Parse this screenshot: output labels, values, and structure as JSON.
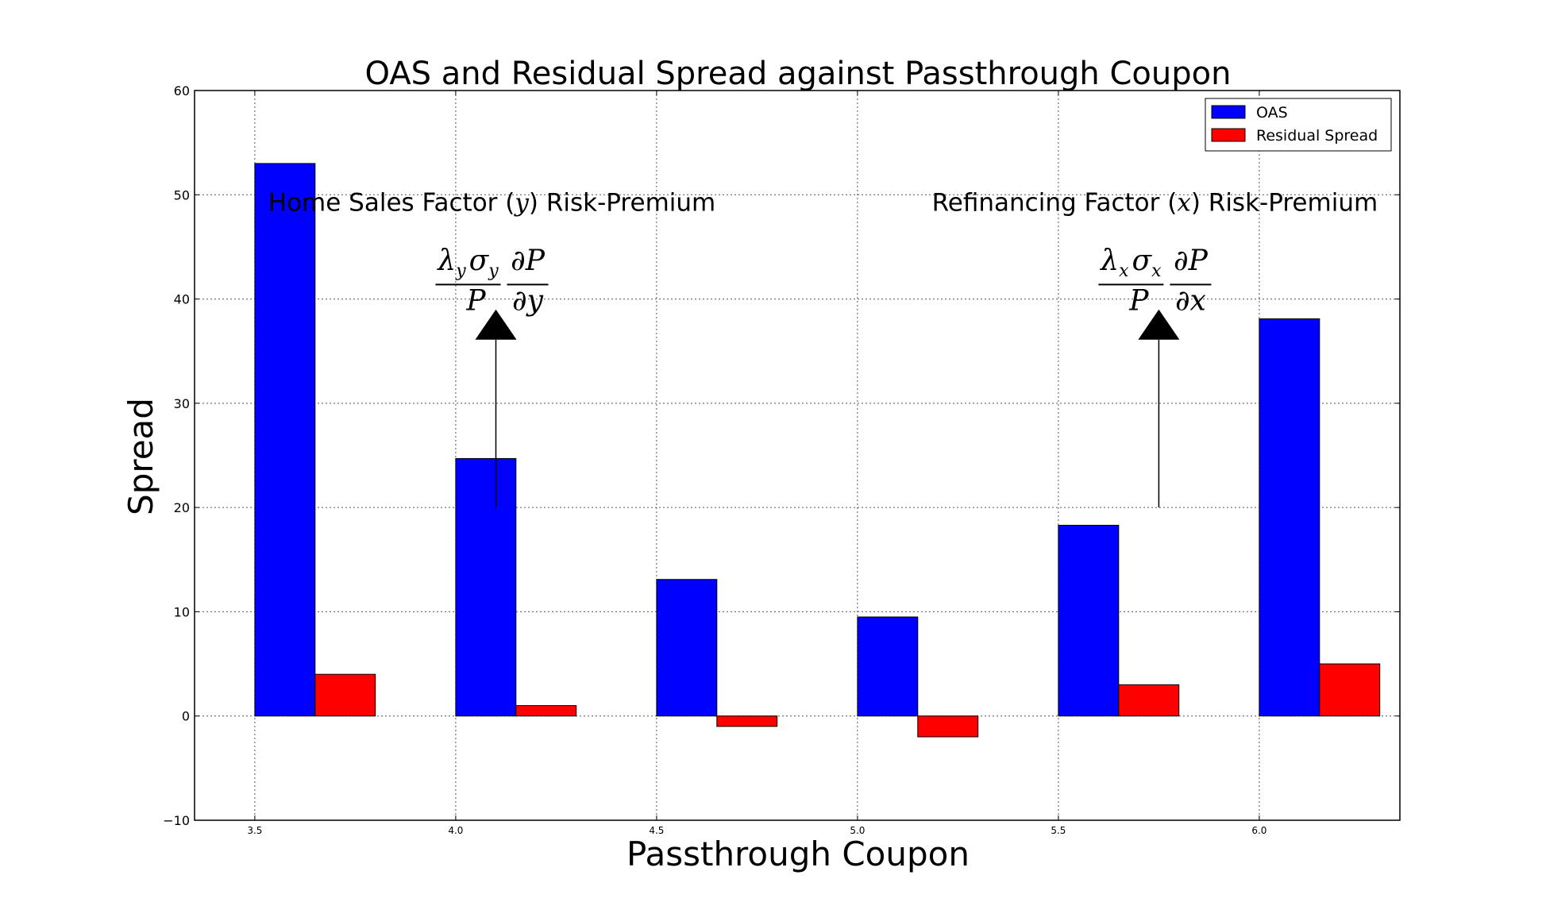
{
  "chart_data": {
    "type": "bar",
    "title": "OAS and Residual Spread against Passthrough Coupon",
    "xlabel": "Passthrough Coupon",
    "ylabel": "Spread",
    "categories": [
      "3.5",
      "4.0",
      "4.5",
      "5.0",
      "5.5",
      "6.0"
    ],
    "series": [
      {
        "name": "OAS",
        "color": "#0000ff",
        "values": [
          53,
          24.7,
          13.1,
          9.5,
          18.3,
          38.1
        ]
      },
      {
        "name": "Residual Spread",
        "color": "#ff0000",
        "values": [
          4,
          1,
          -1,
          -2,
          3,
          5
        ]
      }
    ],
    "ylim": [
      -10,
      60
    ],
    "yticks": [
      -10,
      0,
      10,
      20,
      30,
      40,
      50,
      60
    ],
    "ytick_labels": [
      "−10",
      "0",
      "10",
      "20",
      "30",
      "40",
      "50",
      "60"
    ],
    "grid": true,
    "legend_position": "top-right",
    "annotations": [
      {
        "text_before": "Home Sales Factor (",
        "var": "y",
        "text_after": ") Risk-Premium",
        "formula": {
          "lambda_sub": "y",
          "sigma_sub": "y",
          "denominator": "P",
          "partial_num": "∂P",
          "partial_den": "∂y"
        },
        "arrow_x": 4.1,
        "arrow_from_y": 20,
        "arrow_to_y": 39
      },
      {
        "text_before": "Refinancing Factor (",
        "var": "x",
        "text_after": ") Risk-Premium",
        "formula": {
          "lambda_sub": "x",
          "sigma_sub": "x",
          "denominator": "P",
          "partial_num": "∂P",
          "partial_den": "∂x"
        },
        "arrow_x": 5.75,
        "arrow_from_y": 20,
        "arrow_to_y": 39
      }
    ]
  }
}
